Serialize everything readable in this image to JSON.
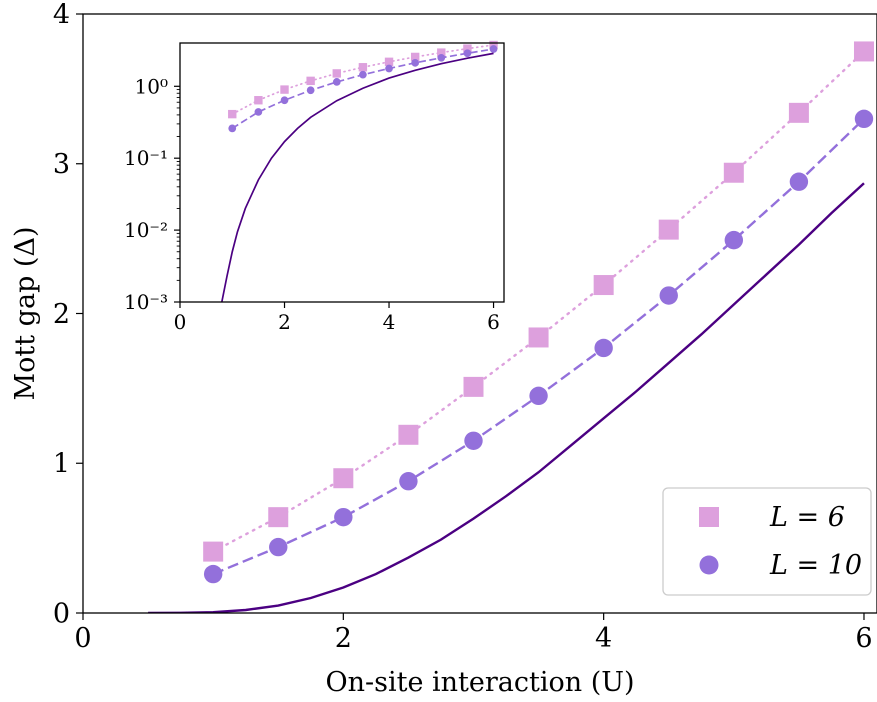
{
  "chart_data": [
    {
      "type": "line",
      "title": "",
      "xlabel": "On-site interaction (U)",
      "ylabel": "Mott gap (Δ)",
      "xlim": [
        0,
        6.1
      ],
      "ylim": [
        0,
        4
      ],
      "xticks": [
        "0",
        "2",
        "4",
        "6"
      ],
      "yticks": [
        "0",
        "1",
        "2",
        "3",
        "4"
      ],
      "grid": false,
      "legend_position": "lower-right",
      "series": [
        {
          "name": "L = 6",
          "style": "dotted",
          "marker": "square",
          "color": "#dda0dd",
          "x": [
            1.0,
            1.5,
            2.0,
            2.5,
            3.0,
            3.5,
            4.0,
            4.5,
            5.0,
            5.5,
            6.0
          ],
          "y": [
            0.41,
            0.64,
            0.9,
            1.19,
            1.51,
            1.84,
            2.19,
            2.56,
            2.94,
            3.34,
            3.75
          ]
        },
        {
          "name": "L = 10",
          "style": "dashed",
          "marker": "circle",
          "color": "#9370db",
          "x": [
            1.0,
            1.5,
            2.0,
            2.5,
            3.0,
            3.5,
            4.0,
            4.5,
            5.0,
            5.5,
            6.0
          ],
          "y": [
            0.26,
            0.44,
            0.64,
            0.88,
            1.15,
            1.45,
            1.77,
            2.12,
            2.49,
            2.88,
            3.3
          ]
        },
        {
          "style": "solid",
          "marker": "none",
          "color": "#4b0082",
          "x": [
            0.5,
            0.75,
            1.0,
            1.25,
            1.5,
            1.75,
            2.0,
            2.25,
            2.5,
            2.75,
            3.0,
            3.25,
            3.5,
            3.75,
            4.0,
            4.25,
            4.5,
            4.75,
            5.0,
            5.25,
            5.5,
            5.75,
            6.0
          ],
          "y": [
            0.0,
            0.001,
            0.005,
            0.02,
            0.05,
            0.1,
            0.17,
            0.26,
            0.37,
            0.49,
            0.63,
            0.78,
            0.94,
            1.12,
            1.3,
            1.48,
            1.67,
            1.86,
            2.06,
            2.26,
            2.46,
            2.67,
            2.87
          ]
        }
      ]
    },
    {
      "type": "line",
      "title": "",
      "xlabel": "",
      "ylabel": "",
      "inset": true,
      "yscale": "log",
      "xlim": [
        0,
        6.2
      ],
      "ylim": [
        0.001,
        4.0
      ],
      "xticks": [
        "0",
        "2",
        "4",
        "6"
      ],
      "yticks": [
        "10⁻³",
        "10⁻²",
        "10⁻¹",
        "10⁰"
      ],
      "grid": false,
      "series": [
        {
          "style": "dotted",
          "marker": "square",
          "color": "#dda0dd",
          "x": [
            1.0,
            1.5,
            2.0,
            2.5,
            3.0,
            3.5,
            4.0,
            4.5,
            5.0,
            5.5,
            6.0
          ],
          "y": [
            0.41,
            0.64,
            0.9,
            1.19,
            1.51,
            1.84,
            2.19,
            2.56,
            2.94,
            3.34,
            3.75
          ]
        },
        {
          "style": "dashed",
          "marker": "circle",
          "color": "#9370db",
          "x": [
            1.0,
            1.5,
            2.0,
            2.5,
            3.0,
            3.5,
            4.0,
            4.5,
            5.0,
            5.5,
            6.0
          ],
          "y": [
            0.26,
            0.44,
            0.64,
            0.88,
            1.15,
            1.45,
            1.77,
            2.12,
            2.49,
            2.88,
            3.3
          ]
        },
        {
          "style": "solid",
          "marker": "none",
          "color": "#4b0082",
          "x": [
            0.8,
            0.9,
            1.0,
            1.1,
            1.25,
            1.5,
            1.75,
            2.0,
            2.25,
            2.5,
            3.0,
            3.5,
            4.0,
            4.5,
            5.0,
            5.5,
            6.0
          ],
          "y": [
            0.001,
            0.0023,
            0.005,
            0.0095,
            0.02,
            0.05,
            0.1,
            0.17,
            0.26,
            0.37,
            0.63,
            0.94,
            1.3,
            1.67,
            2.06,
            2.46,
            2.87
          ]
        }
      ]
    }
  ]
}
